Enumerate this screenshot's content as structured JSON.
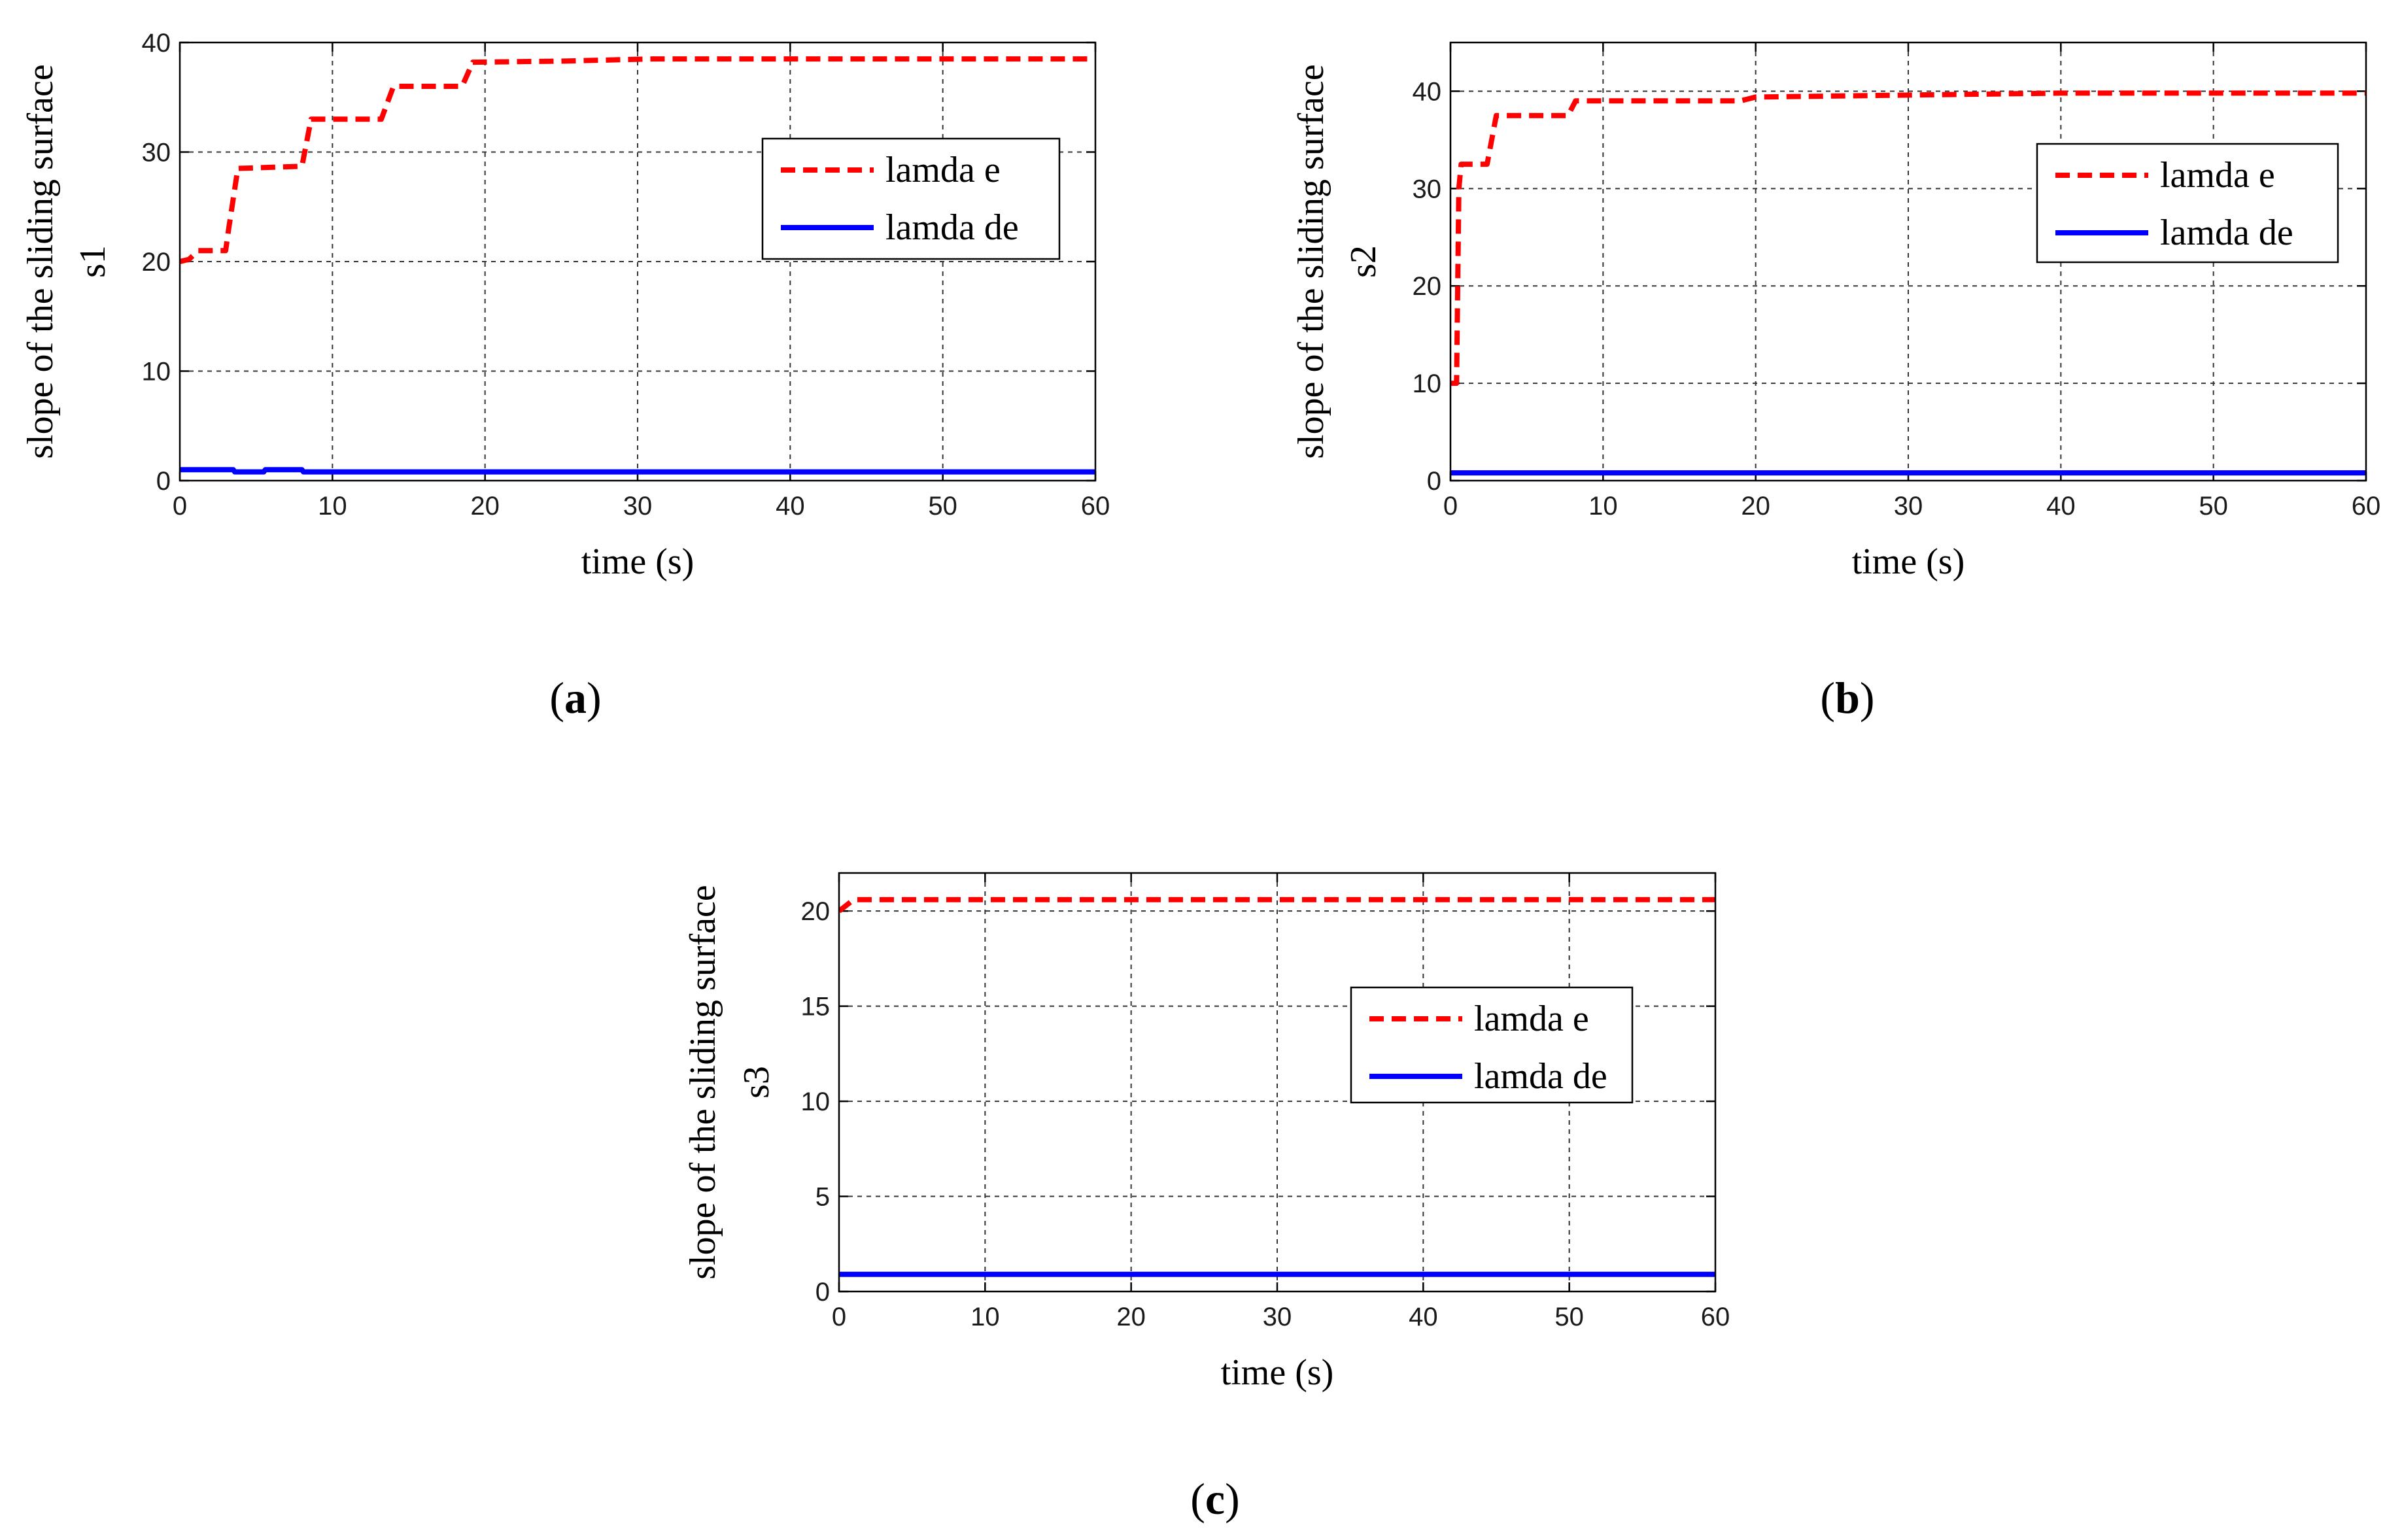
{
  "chart_data": [
    {
      "type": "line",
      "caption_letter": "a",
      "title": "",
      "xlabel": "time (s)",
      "ylabel_line1": "slope of the sliding surface",
      "ylabel_line2": "s1",
      "xlim": [
        0,
        60
      ],
      "ylim": [
        0,
        40
      ],
      "xticks": [
        0,
        10,
        20,
        30,
        40,
        50,
        60
      ],
      "yticks": [
        0,
        10,
        20,
        30,
        40
      ],
      "grid": true,
      "legend_position": "upper-right",
      "series": [
        {
          "name": "lamda e",
          "color": "#ff0000",
          "style": "dashed",
          "x": [
            0,
            0.6,
            1.2,
            3.0,
            3.2,
            3.8,
            8.0,
            8.6,
            13.2,
            14.0,
            18.5,
            19.2,
            25,
            31,
            60
          ],
          "y": [
            20,
            20.2,
            21,
            21,
            23,
            28.5,
            28.7,
            33,
            33,
            36,
            36,
            38.2,
            38.3,
            38.5,
            38.5
          ]
        },
        {
          "name": "lamda de",
          "color": "#0000ff",
          "style": "solid",
          "x": [
            0,
            3.5,
            3.6,
            5.5,
            5.6,
            8.0,
            8.1,
            60
          ],
          "y": [
            1.0,
            1.0,
            0.8,
            0.8,
            1.0,
            1.0,
            0.8,
            0.8
          ]
        }
      ]
    },
    {
      "type": "line",
      "caption_letter": "b",
      "title": "",
      "xlabel": "time (s)",
      "ylabel_line1": "slope of the sliding surface",
      "ylabel_line2": "s2",
      "xlim": [
        0,
        60
      ],
      "ylim": [
        0,
        45
      ],
      "xticks": [
        0,
        10,
        20,
        30,
        40,
        50,
        60
      ],
      "yticks": [
        0,
        10,
        20,
        30,
        40
      ],
      "grid": true,
      "legend_position": "upper-right",
      "series": [
        {
          "name": "lamda e",
          "color": "#ff0000",
          "style": "dashed",
          "x": [
            0,
            0.4,
            0.55,
            0.7,
            2.4,
            2.7,
            3.0,
            7.7,
            8.2,
            19,
            20,
            40,
            60
          ],
          "y": [
            10,
            10,
            30,
            32.5,
            32.5,
            35,
            37.5,
            37.5,
            39,
            39,
            39.4,
            39.8,
            39.8
          ]
        },
        {
          "name": "lamda de",
          "color": "#0000ff",
          "style": "solid",
          "x": [
            0,
            60
          ],
          "y": [
            0.8,
            0.8
          ]
        }
      ]
    },
    {
      "type": "line",
      "caption_letter": "c",
      "title": "",
      "xlabel": "time (s)",
      "ylabel_line1": "slope of the sliding surface",
      "ylabel_line2": "s3",
      "xlim": [
        0,
        60
      ],
      "ylim": [
        0,
        22
      ],
      "xticks": [
        0,
        10,
        20,
        30,
        40,
        50,
        60
      ],
      "yticks": [
        0,
        5,
        10,
        15,
        20
      ],
      "grid": true,
      "legend_position": "upper-center",
      "series": [
        {
          "name": "lamda e",
          "color": "#ff0000",
          "style": "dashed",
          "x": [
            0,
            0.5,
            1.0,
            60
          ],
          "y": [
            20,
            20.3,
            20.6,
            20.6
          ]
        },
        {
          "name": "lamda de",
          "color": "#0000ff",
          "style": "solid",
          "x": [
            0,
            60
          ],
          "y": [
            0.9,
            0.9
          ]
        }
      ]
    }
  ]
}
